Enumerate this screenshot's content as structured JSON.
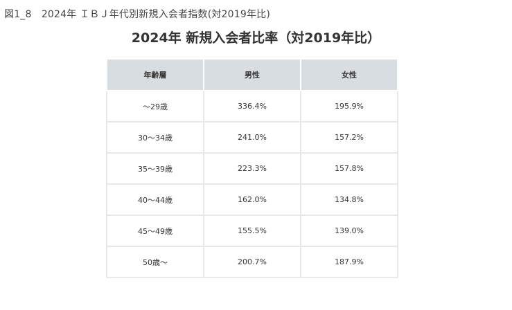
{
  "figure_label": "図1_8　2024年 ＩＢＪ年代別新規入会者指数(対2019年比)",
  "table_title": "2024年 新規入会者比率（対2019年比）",
  "table": {
    "headers": [
      "年齢層",
      "男性",
      "女性"
    ],
    "rows": [
      [
        "～29歳",
        "336.4%",
        "195.9%"
      ],
      [
        "30～34歳",
        "241.0%",
        "157.2%"
      ],
      [
        "35～39歳",
        "223.3%",
        "157.8%"
      ],
      [
        "40～44歳",
        "162.0%",
        "134.8%"
      ],
      [
        "45～49歳",
        "155.5%",
        "139.0%"
      ],
      [
        "50歳～",
        "200.7%",
        "187.9%"
      ]
    ]
  }
}
